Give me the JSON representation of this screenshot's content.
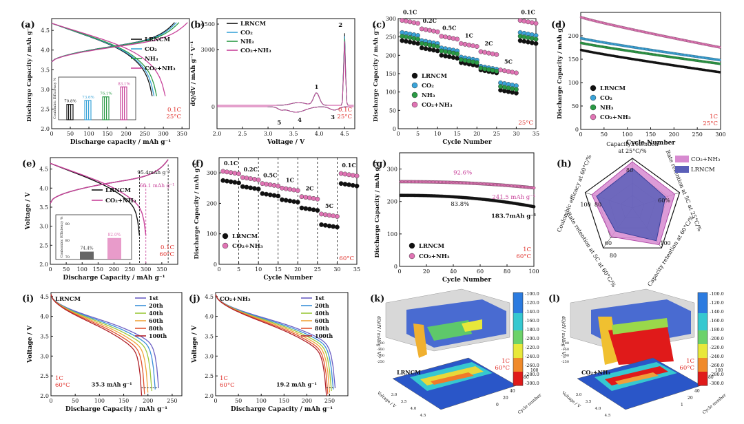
{
  "chart_data": [
    {
      "id": "a",
      "panel_label": "(a)",
      "type": "line",
      "xlabel": "Discharge capacity / mAh g⁻¹",
      "ylabel": "Discharge Capacity / mAh g⁻¹",
      "xlim": [
        0,
        370
      ],
      "ylim": [
        2.0,
        4.8
      ],
      "xticks": [
        "0",
        "50",
        "100",
        "150",
        "200",
        "250",
        "300",
        "350"
      ],
      "yticks": [
        "2.0",
        "2.5",
        "3.0",
        "3.5",
        "4.0",
        "4.5"
      ],
      "legend": [
        "LRNCM",
        "CO₂",
        "NH₃",
        "CO₂+NH₃"
      ],
      "series_colors": [
        "#111111",
        "#3aa3d8",
        "#2a9a45",
        "#c8429a"
      ],
      "end_capacities": [
        270,
        275,
        282,
        305
      ],
      "condition": [
        "0.1C",
        "25°C"
      ],
      "inset": {
        "ylabel": "Coulombic Efficiency %",
        "values": [
          70.8,
          73.6,
          76.1,
          83.1
        ],
        "labels": [
          "70.8%",
          "73.6%",
          "76.1%",
          "83.1%"
        ]
      }
    },
    {
      "id": "b",
      "panel_label": "(b)",
      "type": "line",
      "xlabel": "Voltage / V",
      "ylabel": "dQ/dV / mAh g⁻¹ V⁻¹",
      "xlim": [
        2.0,
        4.7
      ],
      "xticks": [
        "2.0",
        "2.5",
        "3.0",
        "3.5",
        "4.0",
        "4.5"
      ],
      "yticks": [
        "0",
        "3000",
        "4500"
      ],
      "legend": [
        "LRNCM",
        "CO₂",
        "NH₃",
        "CO₂+NH₃"
      ],
      "peaks": [
        {
          "v": 3.95,
          "label": "1"
        },
        {
          "v": 4.5,
          "label": "2"
        },
        {
          "v": 4.35,
          "label": "3"
        },
        {
          "v": 3.7,
          "label": "4"
        },
        {
          "v": 3.3,
          "label": "5"
        }
      ],
      "condition": [
        "0.1C",
        "25°C"
      ]
    },
    {
      "id": "c",
      "panel_label": "(c)",
      "type": "scatter",
      "xlabel": "Cycle Number",
      "ylabel": "Discharge Capacity / mAh g⁻¹",
      "xlim": [
        0,
        35
      ],
      "ylim": [
        0,
        300
      ],
      "xticks": [
        "0",
        "5",
        "10",
        "15",
        "20",
        "25",
        "30",
        "35"
      ],
      "yticks": [
        "0",
        "50",
        "100",
        "150",
        "200",
        "250",
        "300"
      ],
      "rate_labels": [
        "0.1C",
        "0.2C",
        "0.5C",
        "1C",
        "2C",
        "5C",
        "0.1C"
      ],
      "series": [
        {
          "name": "LRNCM",
          "color": "#111111",
          "values": [
            240,
            220,
            200,
            180,
            160,
            105,
            240
          ]
        },
        {
          "name": "CO₂",
          "color": "#3aa3d8",
          "values": [
            262,
            240,
            220,
            195,
            170,
            125,
            262
          ]
        },
        {
          "name": "NH₃",
          "color": "#2a9a45",
          "values": [
            252,
            232,
            212,
            188,
            165,
            115,
            252
          ]
        },
        {
          "name": "CO₂+NH₃",
          "color": "#e074b4",
          "values": [
            295,
            272,
            252,
            232,
            210,
            160,
            295
          ]
        }
      ],
      "condition": [
        "25°C"
      ]
    },
    {
      "id": "d",
      "panel_label": "(d)",
      "type": "line",
      "xlabel": "Cycle Number",
      "ylabel": "Discharge Capacity / mAh g⁻¹",
      "xlim": [
        0,
        300
      ],
      "ylim": [
        0,
        250
      ],
      "xticks": [
        "0",
        "50",
        "100",
        "150",
        "200",
        "250",
        "300"
      ],
      "yticks": [
        "0",
        "50",
        "100",
        "150",
        "200"
      ],
      "series": [
        {
          "name": "LRNCM",
          "color": "#111111",
          "start": 170,
          "end": 122
        },
        {
          "name": "CO₂",
          "color": "#3aa3d8",
          "start": 195,
          "end": 148
        },
        {
          "name": "NH₃",
          "color": "#2a9a45",
          "start": 185,
          "end": 140
        },
        {
          "name": "CO₂+NH₃",
          "color": "#e074b4",
          "start": 240,
          "end": 175
        }
      ],
      "condition": [
        "1C",
        "25°C"
      ]
    },
    {
      "id": "e",
      "panel_label": "(e)",
      "type": "line",
      "xlabel": "Discharge Capacity / mAh g⁻¹",
      "ylabel": "Voltage / V",
      "xlim": [
        0,
        400
      ],
      "ylim": [
        2.0,
        4.8
      ],
      "xticks": [
        "0",
        "50",
        "100",
        "150",
        "200",
        "250",
        "300",
        "350"
      ],
      "yticks": [
        "2.0",
        "2.5",
        "3.0",
        "3.5",
        "4.0",
        "4.5"
      ],
      "legend": [
        "LRNCM",
        "CO₂+NH₃"
      ],
      "annotations": [
        "95.4mAh g⁻¹",
        "68.1 mAh g⁻¹"
      ],
      "condition": [
        "0.1C",
        "60°C"
      ],
      "inset": {
        "ylabel": "Coulombic Efficiency %",
        "yticks": [
          "70",
          "80",
          "90"
        ],
        "values": [
          74.4,
          82.0
        ],
        "labels": [
          "74.4%",
          "82.0%"
        ]
      }
    },
    {
      "id": "f",
      "panel_label": "(f)",
      "type": "scatter",
      "xlabel": "Cycle Number",
      "ylabel": "Discharge Capacity / mAh g⁻¹",
      "xlim": [
        0,
        35
      ],
      "ylim": [
        0,
        350
      ],
      "xticks": [
        "0",
        "5",
        "10",
        "15",
        "20",
        "25",
        "30",
        "35"
      ],
      "yticks": [
        "0",
        "100",
        "200",
        "300"
      ],
      "rate_labels": [
        "0.1C",
        "0.2C",
        "0.5C",
        "1C",
        "2C",
        "5C",
        "0.1C"
      ],
      "series": [
        {
          "name": "LRNCM",
          "color": "#111111",
          "values": [
            275,
            255,
            232,
            212,
            185,
            130,
            265
          ]
        },
        {
          "name": "CO₂+NH₃",
          "color": "#e074b4",
          "values": [
            305,
            285,
            265,
            250,
            222,
            165,
            298
          ]
        }
      ],
      "condition": [
        "60°C"
      ]
    },
    {
      "id": "g",
      "panel_label": "(g)",
      "type": "line",
      "xlabel": "Cycle Number",
      "ylabel": "Discharge Capacity / mAh g⁻¹",
      "xlim": [
        0,
        100
      ],
      "ylim": [
        0,
        350
      ],
      "xticks": [
        "0",
        "20",
        "40",
        "60",
        "80",
        "100"
      ],
      "yticks": [
        "0",
        "100",
        "200",
        "300"
      ],
      "series": [
        {
          "name": "LRNCM",
          "color": "#111111",
          "start": 219,
          "end": 184
        },
        {
          "name": "CO₂+NH₃",
          "color": "#e074b4",
          "start": 261,
          "end": 242
        }
      ],
      "annotations": [
        "92.6%",
        "83.8%",
        "241.5 mAh g⁻¹",
        "183.7mAh g⁻¹"
      ],
      "condition": [
        "1C",
        "60°C"
      ]
    },
    {
      "id": "h",
      "panel_label": "(h)",
      "type": "radar",
      "axes": [
        "Capacity retention at 25°C/%",
        "Rate retention at 5C at 25°C/%",
        "Capacity retention at 60°C/%",
        "Rate retention at 5C at 60°C/%",
        "Coulombic efficacy at 60°C/%"
      ],
      "tick_labels": [
        "80",
        "60%",
        "100",
        "60",
        "80",
        "80",
        "100"
      ],
      "series": [
        {
          "name": "CO₂+NH₃",
          "color": "#d78ad0",
          "values": [
            0.93,
            0.9,
            0.92,
            0.72,
            0.86
          ]
        },
        {
          "name": "LRNCM",
          "color": "#5a5fb8",
          "values": [
            0.8,
            0.7,
            0.82,
            0.58,
            0.76
          ]
        }
      ]
    },
    {
      "id": "i",
      "panel_label": "(i)",
      "type": "line",
      "title": "LRNCM",
      "xlabel": "Discharge Capacity / mAh g⁻¹",
      "ylabel": "Voltage / V",
      "xlim": [
        0,
        270
      ],
      "ylim": [
        2.0,
        4.6
      ],
      "xticks": [
        "0",
        "50",
        "100",
        "150",
        "200",
        "250"
      ],
      "yticks": [
        "2.0",
        "2.5",
        "3.0",
        "3.5",
        "4.0",
        "4.5"
      ],
      "legend": [
        "1st",
        "20th",
        "40th",
        "60th",
        "80th",
        "100th"
      ],
      "series_colors": [
        "#6b5fc4",
        "#3b8fd8",
        "#9bc83a",
        "#f0a43a",
        "#e0522f",
        "#b0222a"
      ],
      "end_capacities": [
        222,
        215,
        208,
        200,
        193,
        187
      ],
      "annotations": [
        "35.3 mAh g⁻¹"
      ],
      "condition": [
        "1C",
        "60°C"
      ]
    },
    {
      "id": "j",
      "panel_label": "(j)",
      "type": "line",
      "title": "CO₂+NH₃",
      "xlabel": "Discharge Capacity / mAh g⁻¹",
      "ylabel": "Voltage / V",
      "xlim": [
        0,
        290
      ],
      "ylim": [
        2.0,
        4.6
      ],
      "xticks": [
        "0",
        "50",
        "100",
        "150",
        "200",
        "250"
      ],
      "yticks": [
        "2.0",
        "2.5",
        "3.0",
        "3.5",
        "4.0",
        "4.5"
      ],
      "legend": [
        "1st",
        "20th",
        "40th",
        "60th",
        "80th",
        "100th"
      ],
      "series_colors": [
        "#6b5fc4",
        "#3b8fd8",
        "#9bc83a",
        "#f0a43a",
        "#e0522f",
        "#b0222a"
      ],
      "end_capacities": [
        262,
        258,
        254,
        250,
        246,
        243
      ],
      "annotations": [
        "19.2 mAh g⁻¹"
      ],
      "condition": [
        "1C",
        "60°C"
      ]
    },
    {
      "id": "k",
      "panel_label": "(k)",
      "type": "heatmap",
      "title": "LRNCM",
      "zlabel": "dQ/dV / mAh g⁻¹ V⁻¹",
      "colorbar_ticks": [
        "-100.0",
        "-120.0",
        "-140.0",
        "-160.0",
        "-180.0",
        "-200.0",
        "-220.0",
        "-240.0",
        "-260.0",
        "-280.0",
        "-300.0"
      ],
      "cycle_ticks": [
        "100",
        "80",
        "60",
        "40",
        "20",
        "0"
      ],
      "voltage_ticks": [
        "3.0",
        "3.5",
        "4.0",
        "4.5"
      ],
      "xlabel": "Voltage / V",
      "ylabel": "Cycle number",
      "condition": [
        "1C",
        "60°C"
      ]
    },
    {
      "id": "l",
      "panel_label": "(l)",
      "type": "heatmap",
      "title": "CO₂+NH₃",
      "zlabel": "dQ/dV / mAh g⁻¹ V⁻¹",
      "colorbar_ticks": [
        "-100.0",
        "-120.0",
        "-140.0",
        "-160.0",
        "-180.0",
        "-200.0",
        "-220.0",
        "-240.0",
        "-260.0",
        "-280.0",
        "-300.0"
      ],
      "cycle_ticks": [
        "100",
        "80",
        "60",
        "40",
        "20",
        "1"
      ],
      "voltage_ticks": [
        "3.0",
        "3.5",
        "4.0",
        "4.5"
      ],
      "xlabel": "Voltage / V",
      "ylabel": "Cycle number",
      "condition": [
        "1C",
        "60°C"
      ]
    }
  ]
}
